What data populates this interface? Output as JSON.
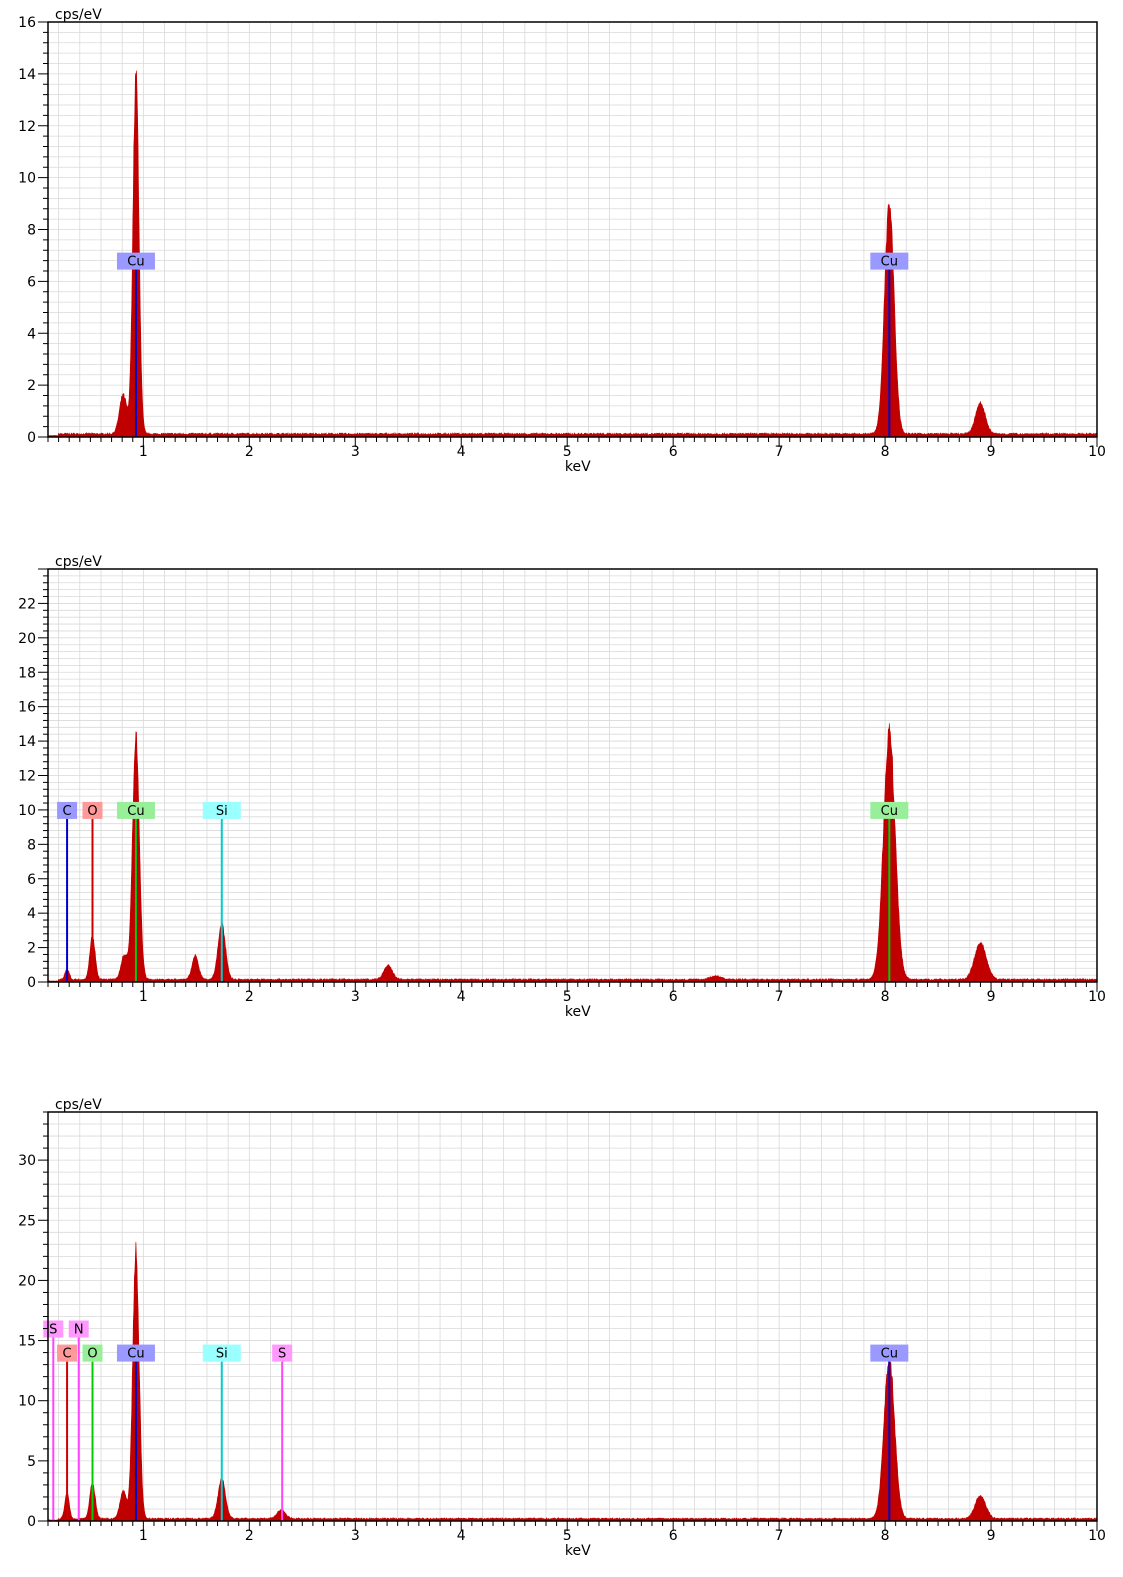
{
  "chart_data": [
    {
      "type": "area",
      "ylabel": "cps/eV",
      "xlabel": "keV",
      "xlim": [
        0.1,
        10
      ],
      "ylim": [
        0,
        16
      ],
      "x_ticks": [
        "1",
        "2",
        "3",
        "4",
        "5",
        "6",
        "7",
        "8",
        "9",
        "10"
      ],
      "y_ticks": [
        "0",
        "2",
        "4",
        "6",
        "8",
        "10",
        "12",
        "14",
        "16"
      ],
      "grid": true,
      "spectrum_color": "#c00000",
      "peaks": [
        {
          "x": 0.81,
          "y": 1.5,
          "w": 0.035
        },
        {
          "x": 0.93,
          "y": 14.0,
          "w": 0.028
        },
        {
          "x": 8.04,
          "y": 8.9,
          "w": 0.045
        },
        {
          "x": 8.9,
          "y": 1.2,
          "w": 0.045
        }
      ],
      "background": 0.12,
      "elements": [
        {
          "label": "Cu",
          "x": 0.93,
          "label_y": 6.8,
          "color": "#9999ff",
          "line": "#0000cc"
        },
        {
          "label": "Cu",
          "x": 8.04,
          "label_y": 6.8,
          "color": "#9999ff",
          "line": "#0000cc"
        }
      ]
    },
    {
      "type": "area",
      "ylabel": "cps/eV",
      "xlabel": "keV",
      "xlim": [
        0.1,
        10
      ],
      "ylim": [
        0,
        24
      ],
      "x_ticks": [
        "1",
        "2",
        "3",
        "4",
        "5",
        "6",
        "7",
        "8",
        "9",
        "10"
      ],
      "y_ticks": [
        "0",
        "2",
        "4",
        "6",
        "8",
        "10",
        "12",
        "14",
        "16",
        "18",
        "20",
        "22"
      ],
      "grid": true,
      "spectrum_color": "#c00000",
      "peaks": [
        {
          "x": 0.28,
          "y": 0.6,
          "w": 0.02
        },
        {
          "x": 0.52,
          "y": 2.5,
          "w": 0.025
        },
        {
          "x": 0.82,
          "y": 1.4,
          "w": 0.03
        },
        {
          "x": 0.93,
          "y": 14.0,
          "w": 0.032
        },
        {
          "x": 1.49,
          "y": 1.4,
          "w": 0.03
        },
        {
          "x": 1.74,
          "y": 3.2,
          "w": 0.035
        },
        {
          "x": 3.31,
          "y": 0.8,
          "w": 0.04
        },
        {
          "x": 6.4,
          "y": 0.2,
          "w": 0.05
        },
        {
          "x": 8.04,
          "y": 14.4,
          "w": 0.055
        },
        {
          "x": 8.9,
          "y": 2.1,
          "w": 0.055
        }
      ],
      "background": 0.15,
      "elements": [
        {
          "label": "C",
          "x": 0.28,
          "label_y": 10.0,
          "color": "#9999ff",
          "line": "#0000cc"
        },
        {
          "label": "O",
          "x": 0.52,
          "label_y": 10.0,
          "color": "#ff9999",
          "line": "#cc0000"
        },
        {
          "label": "Cu",
          "x": 0.93,
          "label_y": 10.0,
          "color": "#99ee99",
          "line": "#00cc00"
        },
        {
          "label": "Si",
          "x": 1.74,
          "label_y": 10.0,
          "color": "#99ffff",
          "line": "#00cccc"
        },
        {
          "label": "Cu",
          "x": 8.04,
          "label_y": 10.0,
          "color": "#99ee99",
          "line": "#00cc00"
        }
      ]
    },
    {
      "type": "area",
      "ylabel": "cps/eV",
      "xlabel": "keV",
      "xlim": [
        0.1,
        10
      ],
      "ylim": [
        0,
        34
      ],
      "x_ticks": [
        "1",
        "2",
        "3",
        "4",
        "5",
        "6",
        "7",
        "8",
        "9",
        "10"
      ],
      "y_ticks": [
        "0",
        "5",
        "10",
        "15",
        "20",
        "25",
        "30"
      ],
      "grid": true,
      "spectrum_color": "#c00000",
      "peaks": [
        {
          "x": 0.28,
          "y": 2.2,
          "w": 0.02
        },
        {
          "x": 0.52,
          "y": 3.0,
          "w": 0.025
        },
        {
          "x": 0.81,
          "y": 2.3,
          "w": 0.03
        },
        {
          "x": 0.93,
          "y": 22.4,
          "w": 0.03
        },
        {
          "x": 1.74,
          "y": 3.3,
          "w": 0.035
        },
        {
          "x": 2.3,
          "y": 0.7,
          "w": 0.04
        },
        {
          "x": 8.04,
          "y": 13.4,
          "w": 0.05
        },
        {
          "x": 8.9,
          "y": 1.9,
          "w": 0.05
        }
      ],
      "background": 0.2,
      "elements": [
        {
          "label": "S",
          "x": 0.15,
          "label_y": 16.0,
          "color": "#ff99ff",
          "line": "#ff44ff"
        },
        {
          "label": "N",
          "x": 0.39,
          "label_y": 16.0,
          "color": "#ff99ff",
          "line": "#ff44ff"
        },
        {
          "label": "C",
          "x": 0.28,
          "label_y": 14.0,
          "color": "#ff9999",
          "line": "#cc0000"
        },
        {
          "label": "O",
          "x": 0.52,
          "label_y": 14.0,
          "color": "#99ee99",
          "line": "#00cc00"
        },
        {
          "label": "Cu",
          "x": 0.93,
          "label_y": 14.0,
          "color": "#9999ff",
          "line": "#0000cc"
        },
        {
          "label": "Si",
          "x": 1.74,
          "label_y": 14.0,
          "color": "#99ffff",
          "line": "#00cccc"
        },
        {
          "label": "S",
          "x": 2.31,
          "label_y": 14.0,
          "color": "#ff99ff",
          "line": "#ff44ff"
        },
        {
          "label": "Cu",
          "x": 8.04,
          "label_y": 14.0,
          "color": "#9999ff",
          "line": "#0000cc"
        }
      ]
    }
  ]
}
